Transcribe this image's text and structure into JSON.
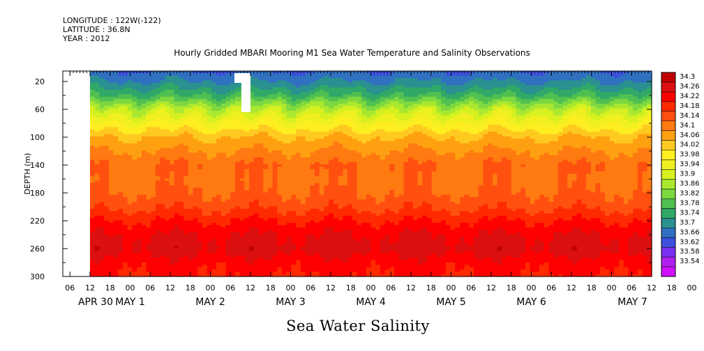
{
  "header": {
    "longitude": "LONGITUDE : 122W(-122)",
    "latitude": "LATITUDE : 36.8N",
    "year": "YEAR : 2012"
  },
  "chart_data": {
    "type": "heatmap",
    "title": "Hourly Gridded MBARI Mooring M1 Sea Water Temperature and Salinity Observations",
    "xlabel": "Sea Water Salinity",
    "ylabel": "DEPTH (m)",
    "y_axis": {
      "ticks": [
        20,
        60,
        100,
        140,
        180,
        220,
        260,
        300
      ],
      "range": [
        5,
        300
      ],
      "inverted": true
    },
    "x_axis": {
      "range_hours": [
        0,
        168
      ],
      "hour_ticks": [
        "06",
        "12",
        "18",
        "00",
        "06",
        "12",
        "18",
        "00",
        "06",
        "12",
        "18",
        "00",
        "06",
        "12",
        "18",
        "00",
        "06",
        "12",
        "18",
        "00",
        "06",
        "12",
        "18",
        "00",
        "06",
        "12",
        "18",
        "00",
        "06",
        "12",
        "18",
        "00"
      ],
      "date_labels": [
        "APR 30",
        "MAY  1",
        "MAY  2",
        "MAY  3",
        "MAY  4",
        "MAY  5",
        "MAY  6",
        "MAY  7"
      ]
    },
    "colorbar": {
      "levels": [
        "34.3",
        "34.26",
        "34.22",
        "34.18",
        "34.14",
        "34.1",
        "34.06",
        "34.02",
        "33.98",
        "33.94",
        "33.9",
        "33.86",
        "33.82",
        "33.78",
        "33.74",
        "33.7",
        "33.66",
        "33.62",
        "33.58",
        "33.54"
      ],
      "colors": [
        "#c00000",
        "#dc1010",
        "#ff0000",
        "#ff2a00",
        "#ff5010",
        "#ff7a10",
        "#ffa010",
        "#ffca20",
        "#ffee20",
        "#f0f020",
        "#d6f020",
        "#aae830",
        "#7ed840",
        "#50c050",
        "#30a868",
        "#2a9090",
        "#3070c0",
        "#3c50dc",
        "#7a30f0",
        "#b020f0",
        "#d010ff"
      ]
    },
    "grid": false,
    "profile": {
      "depth_m": [
        5,
        20,
        40,
        60,
        80,
        100,
        120,
        140,
        160,
        180,
        200,
        220,
        240,
        260,
        280,
        300
      ],
      "salinity": [
        33.66,
        33.7,
        33.78,
        33.9,
        33.98,
        34.06,
        34.1,
        34.14,
        34.13,
        34.14,
        34.17,
        34.22,
        34.26,
        34.28,
        34.24,
        34.22
      ]
    }
  }
}
